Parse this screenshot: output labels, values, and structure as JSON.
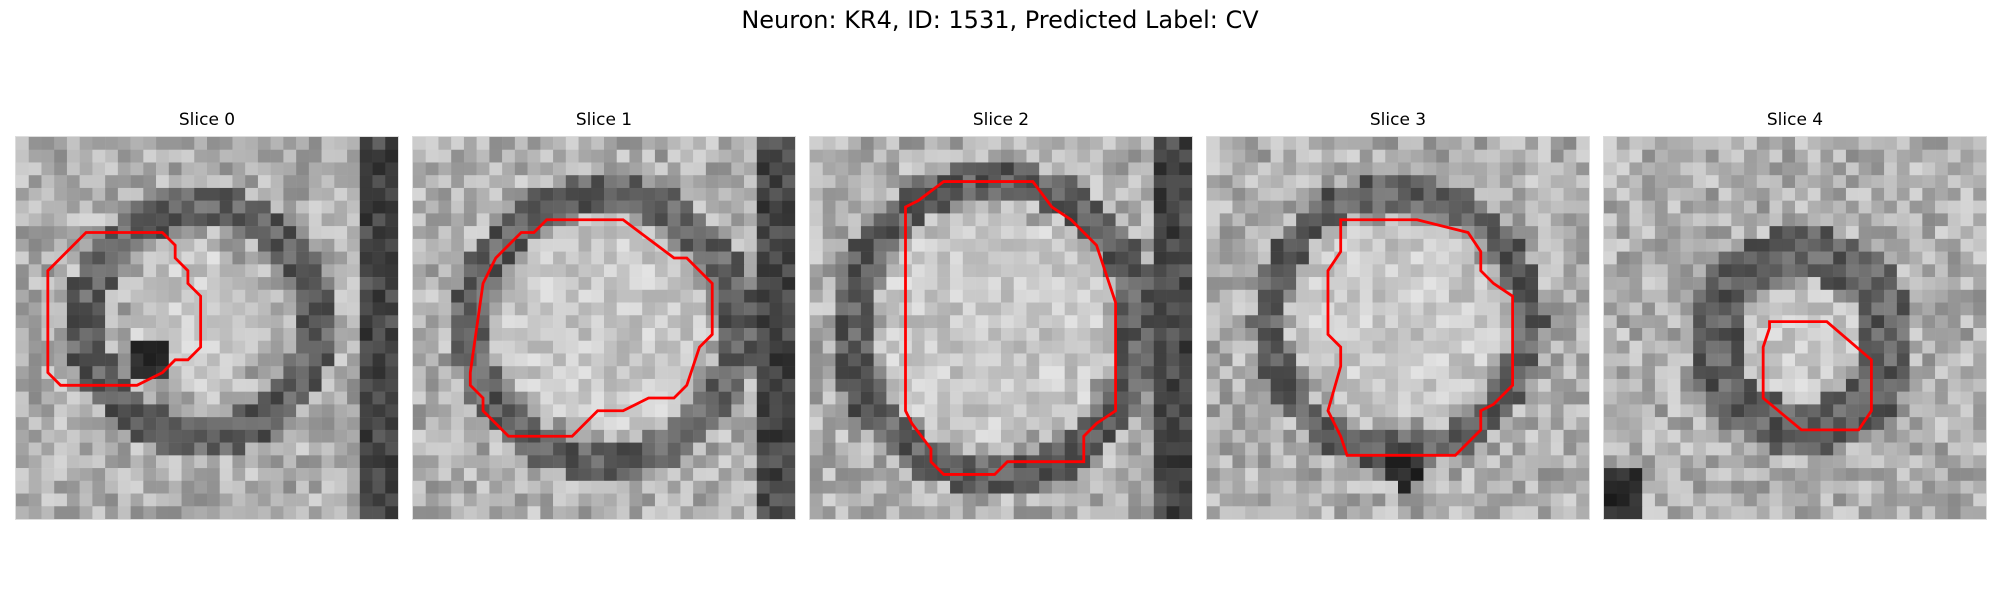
{
  "figure": {
    "title": "Neuron: KR4, ID: 1531, Predicted Label: CV",
    "outline_color": "#ff0000",
    "colormap": "gray"
  },
  "panels": [
    {
      "title": "Slice 0"
    },
    {
      "title": "Slice 1"
    },
    {
      "title": "Slice 2"
    },
    {
      "title": "Slice 3"
    },
    {
      "title": "Slice 4"
    }
  ]
}
